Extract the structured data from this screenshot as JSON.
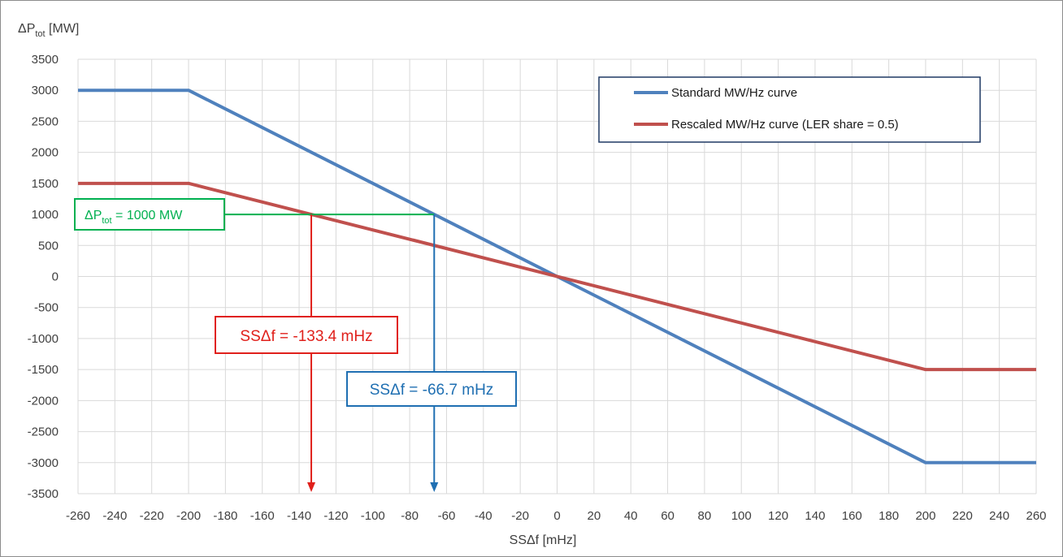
{
  "chart_data": {
    "type": "line",
    "ylabel": "ΔP",
    "ylabel_sub": "tot",
    "ylabel_unit": "[MW]",
    "xlabel": "SSΔf [mHz]",
    "xlim": [
      -260,
      260
    ],
    "ylim": [
      -3500,
      3500
    ],
    "x_ticks": [
      -260,
      -240,
      -220,
      -200,
      -180,
      -160,
      -140,
      -120,
      -100,
      -80,
      -60,
      -40,
      -20,
      0,
      20,
      40,
      60,
      80,
      100,
      120,
      140,
      160,
      180,
      200,
      220,
      240,
      260
    ],
    "y_ticks": [
      3500,
      3000,
      2500,
      2000,
      1500,
      1000,
      500,
      0,
      -500,
      -1000,
      -1500,
      -2000,
      -2500,
      -3000,
      -3500
    ],
    "grid": true,
    "legend_position": "top-right",
    "colors": {
      "standard": "#4f81bd",
      "rescaled": "#c0504d",
      "green": "#00b050",
      "red": "#e0201b",
      "blue": "#1f6fb2"
    },
    "series": [
      {
        "name": "Standard MW/Hz curve",
        "x": [
          -260,
          -200,
          200,
          260
        ],
        "y": [
          3000,
          3000,
          -3000,
          -3000
        ]
      },
      {
        "name": "Rescaled MW/Hz curve (LER share = 0.5)",
        "x": [
          -260,
          -200,
          200,
          260
        ],
        "y": [
          1500,
          1500,
          -1500,
          -1500
        ]
      }
    ],
    "annotations": {
      "power_level": {
        "label_main": "ΔP",
        "label_sub": "tot",
        "label_rest": " = 1000 MW",
        "y": 1000
      },
      "red_marker": {
        "label": "SSΔf = -133.4 mHz",
        "x": -133.4
      },
      "blue_marker": {
        "label": "SSΔf = -66.7 mHz",
        "x": -66.7
      }
    }
  }
}
